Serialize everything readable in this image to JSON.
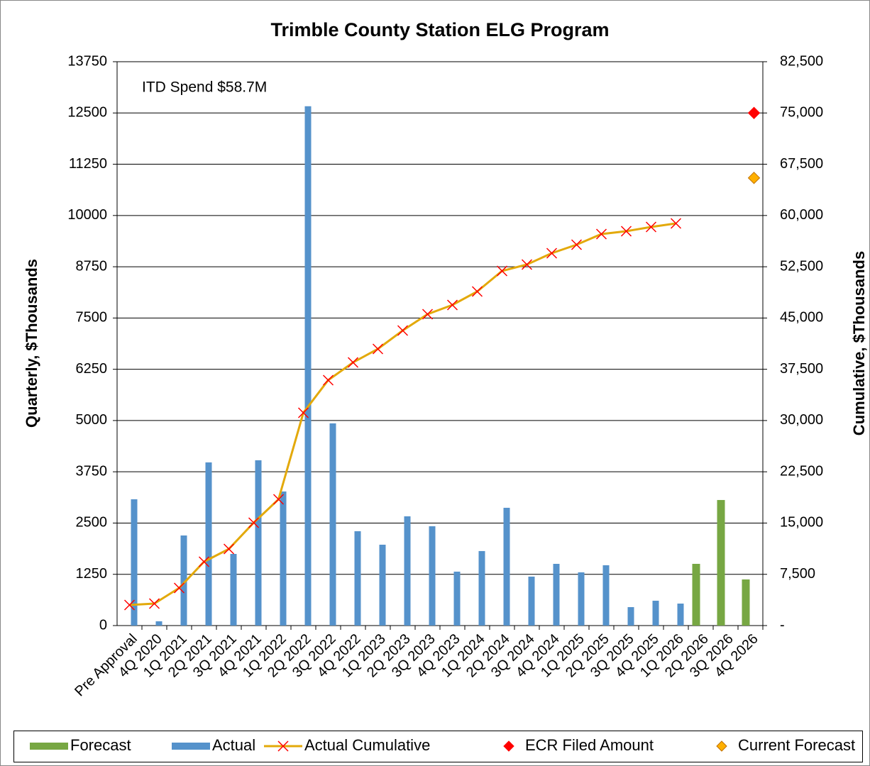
{
  "chart_data": {
    "type": "bar",
    "title": "Trimble County Station ELG Program",
    "annotation": "ITD Spend  $58.7M",
    "y_label": "Quarterly, $Thousands",
    "y2_label": "Cumulative, $Thousands",
    "categories": [
      "Pre Approval",
      "4Q 2020",
      "1Q 2021",
      "2Q 2021",
      "3Q 2021",
      "4Q 2021",
      "1Q 2022",
      "2Q 2022",
      "3Q 2022",
      "4Q 2022",
      "1Q 2023",
      "2Q 2023",
      "3Q 2023",
      "4Q 2023",
      "1Q 2024",
      "2Q 2024",
      "3Q 2024",
      "4Q 2024",
      "1Q 2025",
      "2Q 2025",
      "3Q 2025",
      "4Q 2025",
      "1Q 2026",
      "2Q 2026",
      "3Q 2026",
      "4Q 2026"
    ],
    "series": [
      {
        "name": "Forecast",
        "type": "bar",
        "color": "#77a743",
        "values": [
          null,
          null,
          null,
          null,
          null,
          null,
          null,
          null,
          null,
          null,
          null,
          null,
          null,
          null,
          null,
          null,
          null,
          null,
          null,
          null,
          null,
          null,
          null,
          1505,
          3062,
          1125
        ]
      },
      {
        "name": "Actual",
        "type": "bar",
        "color": "#5592cb",
        "values": [
          3080,
          104,
          2197,
          3979,
          1747,
          4031,
          3270,
          12664,
          4931,
          2301,
          1972,
          2664,
          2422,
          1315,
          1817,
          2872,
          1194,
          1505,
          1298,
          1471,
          450,
          606,
          536,
          null,
          null,
          null
        ]
      },
      {
        "name": "Actual Cumulative",
        "type": "line",
        "axis": "y2",
        "color": "#e3a90a",
        "marker_color": "#ff0000",
        "values": [
          3010,
          3217,
          5500,
          9340,
          11208,
          15048,
          18472,
          31133,
          35907,
          38502,
          40473,
          43171,
          45558,
          46907,
          48879,
          51888,
          52823,
          54483,
          55728,
          57285,
          57700,
          58323,
          58842,
          null,
          null,
          null
        ]
      },
      {
        "name": "ECR Filed Amount",
        "type": "scatter",
        "axis": "y2",
        "color": "#ff0000",
        "values": [
          null,
          null,
          null,
          null,
          null,
          null,
          null,
          null,
          null,
          null,
          null,
          null,
          null,
          null,
          null,
          null,
          null,
          null,
          null,
          null,
          null,
          null,
          null,
          null,
          null,
          75000
        ]
      },
      {
        "name": "Current Forecast",
        "type": "scatter",
        "axis": "y2",
        "color": "#ffb000",
        "values": [
          null,
          null,
          null,
          null,
          null,
          null,
          null,
          null,
          null,
          null,
          null,
          null,
          null,
          null,
          null,
          null,
          null,
          null,
          null,
          null,
          null,
          null,
          null,
          null,
          null,
          65500
        ]
      }
    ],
    "ylim": [
      0,
      13750
    ],
    "yticks": [
      0,
      1250,
      2500,
      3750,
      5000,
      6250,
      7500,
      8750,
      10000,
      11250,
      12500,
      13750
    ],
    "y2lim": [
      0,
      82500
    ],
    "y2ticks": [
      {
        "value": 0,
        "label": "-"
      },
      {
        "value": 7500,
        "label": "7,500"
      },
      {
        "value": 15000,
        "label": "15,000"
      },
      {
        "value": 22500,
        "label": "22,500"
      },
      {
        "value": 30000,
        "label": "30,000"
      },
      {
        "value": 37500,
        "label": "37,500"
      },
      {
        "value": 45000,
        "label": "45,000"
      },
      {
        "value": 52500,
        "label": "52,500"
      },
      {
        "value": 60000,
        "label": "60,000"
      },
      {
        "value": 67500,
        "label": "67,500"
      },
      {
        "value": 75000,
        "label": "75,000"
      },
      {
        "value": 82500,
        "label": "82,500"
      }
    ],
    "grid": true,
    "legend": "bottom"
  }
}
